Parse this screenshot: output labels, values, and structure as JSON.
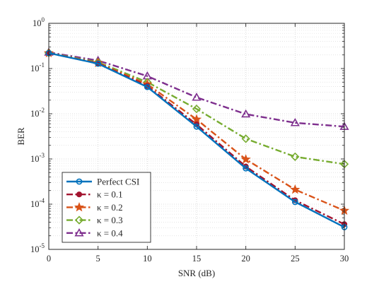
{
  "chart_data": {
    "type": "line",
    "xlabel": "SNR (dB)",
    "ylabel": "BER",
    "xlim": [
      0,
      30
    ],
    "ylim": [
      1e-05,
      1
    ],
    "yscale": "log",
    "grid": true,
    "legend_position": "bottom-left",
    "x": [
      0,
      5,
      10,
      15,
      20,
      25,
      30
    ],
    "x_tick_labels": [
      "0",
      "5",
      "10",
      "15",
      "20",
      "25",
      "30"
    ],
    "y_ticks": [
      {
        "value": 1,
        "base": "10",
        "exp": "0"
      },
      {
        "value": 0.1,
        "base": "10",
        "exp": "-1"
      },
      {
        "value": 0.01,
        "base": "10",
        "exp": "-2"
      },
      {
        "value": 0.001,
        "base": "10",
        "exp": "-3"
      },
      {
        "value": 0.0001,
        "base": "10",
        "exp": "-4"
      },
      {
        "value": 1e-05,
        "base": "10",
        "exp": "-5"
      }
    ],
    "series": [
      {
        "name": "Perfect CSI",
        "values": [
          0.22,
          0.128,
          0.039,
          0.0052,
          0.00062,
          0.000112,
          3.1e-05
        ],
        "color": "#0072BD",
        "marker": "circle-open",
        "dash": "solid",
        "width": 2.4
      },
      {
        "name": "κ = 0.1",
        "values": [
          0.22,
          0.13,
          0.041,
          0.0058,
          0.00068,
          0.000122,
          3.6e-05
        ],
        "color": "#A2142F",
        "marker": "circle-filled",
        "dash": "dashdot",
        "width": 2.4
      },
      {
        "name": "κ = 0.2",
        "values": [
          0.22,
          0.133,
          0.045,
          0.0075,
          0.00098,
          0.00021,
          7.2e-05
        ],
        "color": "#D95319",
        "marker": "star",
        "dash": "dashdot",
        "width": 2.4
      },
      {
        "name": "κ = 0.3",
        "values": [
          0.222,
          0.138,
          0.05,
          0.0128,
          0.0028,
          0.00112,
          0.00077
        ],
        "color": "#77AC30",
        "marker": "diamond",
        "dash": "dashdot",
        "width": 2.4
      },
      {
        "name": "κ = 0.4",
        "values": [
          0.228,
          0.15,
          0.068,
          0.023,
          0.0098,
          0.0063,
          0.0052
        ],
        "color": "#7E2F8E",
        "marker": "triangle",
        "dash": "dashdot",
        "width": 2.4
      }
    ]
  }
}
